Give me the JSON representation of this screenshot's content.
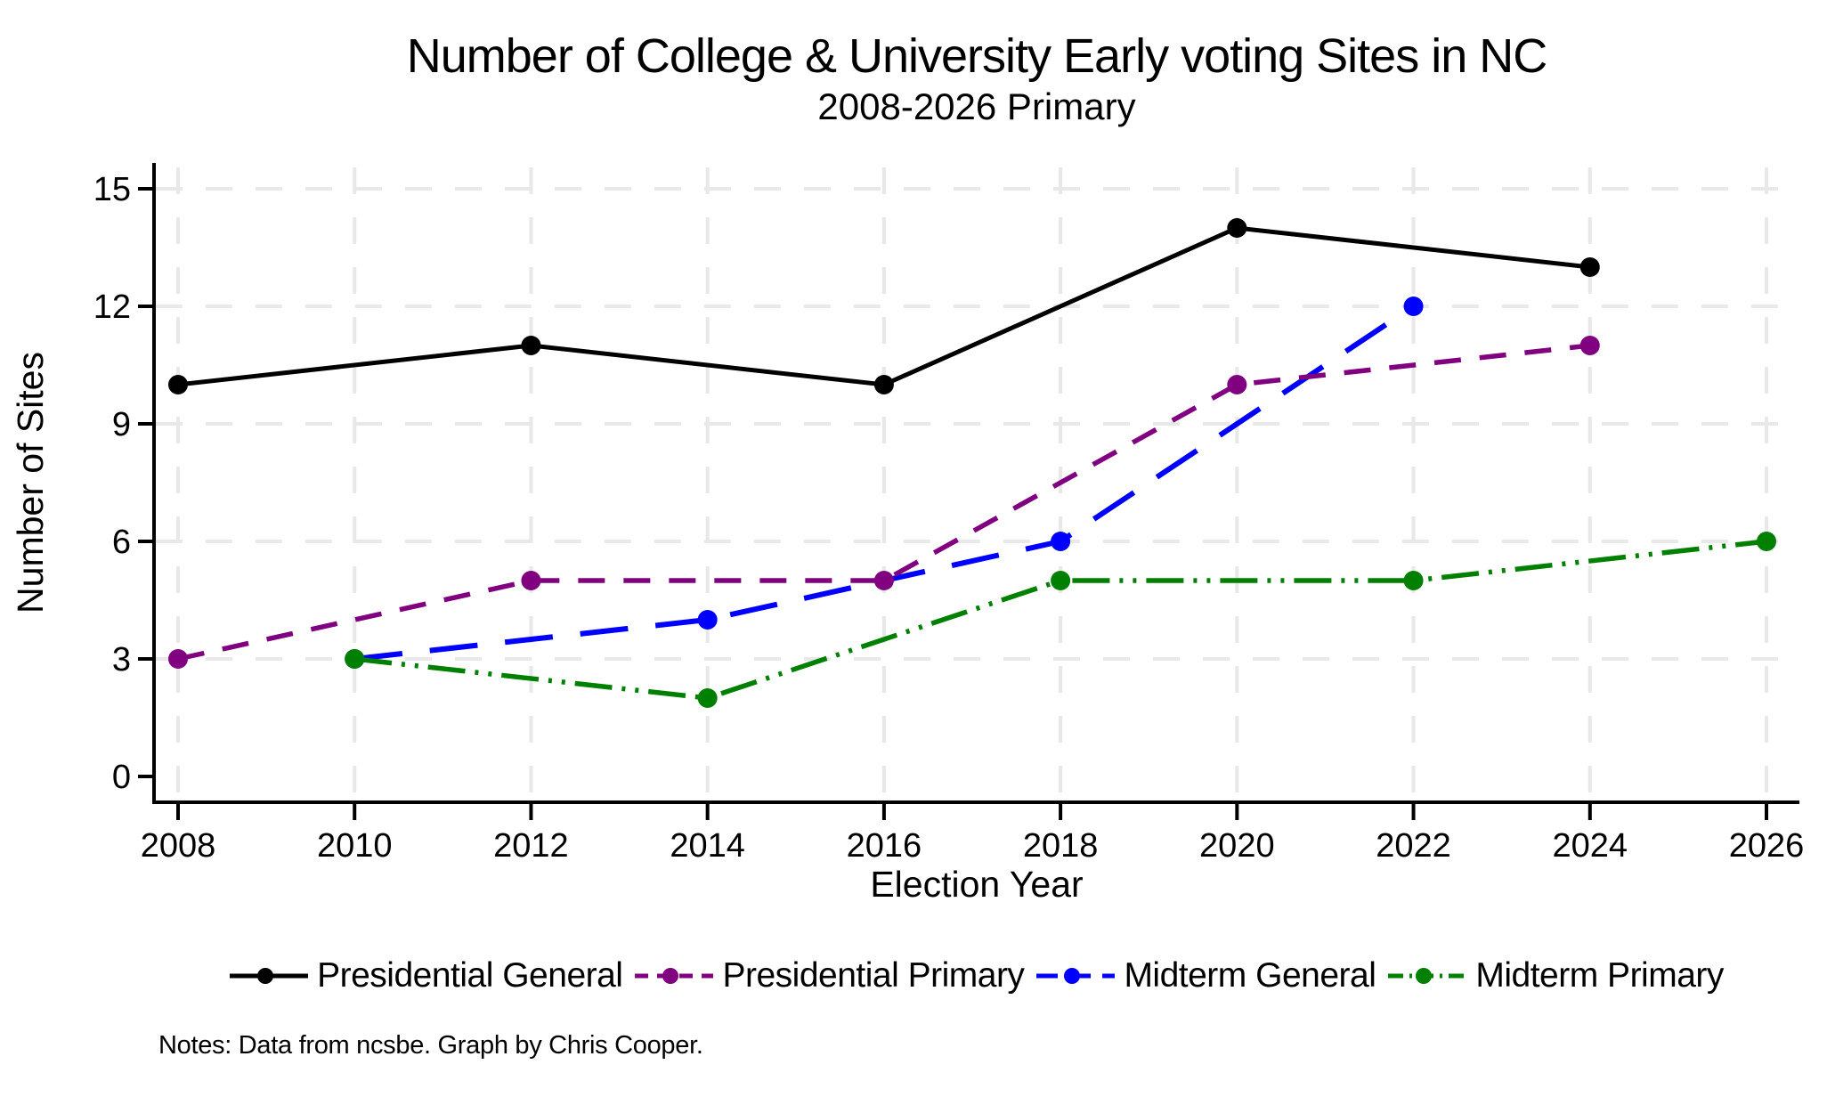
{
  "header": {
    "title": "Number of College & University Early voting Sites in NC",
    "subtitle": "2008-2026 Primary"
  },
  "chart_data": {
    "type": "line",
    "title": "Number of College & University Early voting Sites in NC",
    "subtitle": "2008-2026 Primary",
    "xlabel": "Election Year",
    "ylabel": "Number of Sites",
    "xlim": [
      2008,
      2026
    ],
    "ylim": [
      0,
      15
    ],
    "x_ticks": [
      2008,
      2010,
      2012,
      2014,
      2016,
      2018,
      2020,
      2022,
      2024,
      2026
    ],
    "y_ticks": [
      0,
      3,
      6,
      9,
      12,
      15
    ],
    "grid": true,
    "legend_position": "bottom",
    "series": [
      {
        "name": "Presidential General",
        "color": "#000000",
        "line_style": "solid",
        "x": [
          2008,
          2012,
          2016,
          2020,
          2024
        ],
        "values": [
          10,
          11,
          10,
          14,
          13
        ]
      },
      {
        "name": "Presidential Primary",
        "color": "#800080",
        "line_style": "dash",
        "x": [
          2008,
          2012,
          2016,
          2020,
          2024
        ],
        "values": [
          3,
          5,
          5,
          10,
          11
        ]
      },
      {
        "name": "Midterm General",
        "color": "#0000ff",
        "line_style": "longdash",
        "x": [
          2010,
          2014,
          2018,
          2022
        ],
        "values": [
          3,
          4,
          6,
          12
        ]
      },
      {
        "name": "Midterm Primary",
        "color": "#008000",
        "line_style": "dash_dot_dot",
        "x": [
          2010,
          2014,
          2018,
          2022,
          2026
        ],
        "values": [
          3,
          2,
          5,
          5,
          6
        ]
      }
    ]
  },
  "colors": {
    "grid": "#e8e8e8",
    "axis": "#000000",
    "background": "#ffffff"
  },
  "notes": "Notes: Data from ncsbe. Graph by Chris Cooper."
}
